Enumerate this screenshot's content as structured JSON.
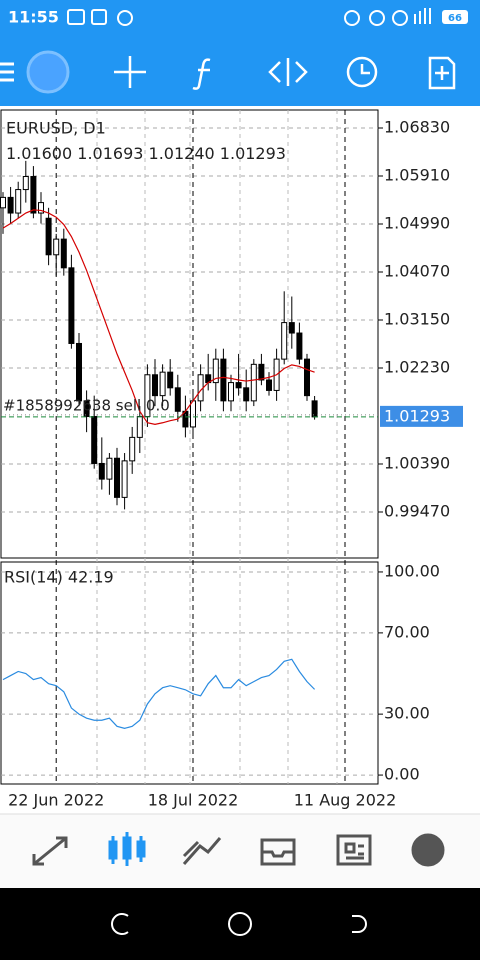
{
  "status_bar": {
    "time": "11:55",
    "battery": "66"
  },
  "chart_data": [
    {
      "type": "candlestick",
      "symbol": "EURUSD, D1",
      "ohlc_label": [
        "1.01600",
        "1.01693",
        "1.01240",
        "1.01293"
      ],
      "order_label": "#1858992638 sell 0.0",
      "categories": [
        null,
        null,
        null,
        null,
        null,
        null,
        null,
        "22 Jun 2022",
        null,
        null,
        null,
        null,
        null,
        null,
        null,
        null,
        null,
        null,
        null,
        null,
        null,
        null,
        null,
        null,
        null,
        "18 Jul 2022",
        null,
        null,
        null,
        null,
        null,
        null,
        null,
        null,
        null,
        null,
        null,
        null,
        null,
        null,
        null,
        null,
        null,
        null,
        null,
        "11 Aug 2022"
      ],
      "open": [
        1.053,
        1.055,
        1.052,
        1.0565,
        1.059,
        1.052,
        1.051,
        1.044,
        1.047,
        1.0415,
        1.027,
        1.016,
        1.013,
        1.004,
        1.001,
        1.005,
        0.9975,
        1.0045,
        1.009,
        1.013,
        1.021,
        1.017,
        1.0215,
        1.0185,
        1.014,
        1.011,
        1.016,
        1.021,
        1.0195,
        1.024,
        1.016,
        1.0195,
        1.0185,
        1.016,
        1.023,
        1.02,
        1.018,
        1.024,
        1.031,
        1.029,
        1.024,
        1.016,
        null,
        null,
        null,
        null
      ],
      "high": [
        1.056,
        1.057,
        1.058,
        1.062,
        1.061,
        1.056,
        1.053,
        1.048,
        1.049,
        1.044,
        1.029,
        1.018,
        1.017,
        1.009,
        1.006,
        1.007,
        1.006,
        1.011,
        1.015,
        1.023,
        1.024,
        1.023,
        1.024,
        1.021,
        1.017,
        1.018,
        1.023,
        1.025,
        1.026,
        1.026,
        1.021,
        1.025,
        1.022,
        1.024,
        1.025,
        1.0215,
        1.026,
        1.037,
        1.036,
        1.031,
        1.025,
        1.01693,
        null,
        null,
        null,
        null
      ],
      "low": [
        1.048,
        1.05,
        1.051,
        1.054,
        1.051,
        1.05,
        1.042,
        1.04,
        1.04,
        1.026,
        1.015,
        1.01,
        1.003,
        0.999,
        0.998,
        0.996,
        0.9952,
        1.002,
        1.006,
        1.011,
        1.015,
        1.015,
        1.017,
        1.012,
        1.009,
        1.009,
        1.014,
        1.018,
        1.016,
        1.014,
        1.014,
        1.017,
        1.014,
        1.015,
        1.019,
        1.017,
        1.016,
        1.023,
        1.026,
        1.023,
        1.016,
        1.0124,
        null,
        null,
        null,
        null
      ],
      "close": [
        1.055,
        1.052,
        1.0565,
        1.059,
        1.052,
        1.054,
        1.044,
        1.047,
        1.0415,
        1.027,
        1.016,
        1.013,
        1.004,
        1.001,
        1.005,
        0.9975,
        1.0045,
        1.009,
        1.013,
        1.021,
        1.017,
        1.0215,
        1.0185,
        1.014,
        1.011,
        1.016,
        1.021,
        1.0195,
        1.024,
        1.016,
        1.0195,
        1.0185,
        1.016,
        1.023,
        1.02,
        1.018,
        1.024,
        1.031,
        1.029,
        1.024,
        1.017,
        1.01293,
        null,
        null,
        null,
        null
      ],
      "overlay": {
        "color": "#d40000",
        "values": [
          1.0491,
          1.05,
          1.051,
          1.052,
          1.0526,
          1.0525,
          1.052,
          1.0512,
          1.0498,
          1.0475,
          1.0445,
          1.041,
          1.037,
          1.033,
          1.029,
          1.025,
          1.0215,
          1.018,
          1.014,
          1.0118,
          1.0115,
          1.0118,
          1.0122,
          1.0125,
          1.014,
          1.016,
          1.018,
          1.0195,
          1.0203,
          1.0205,
          1.0203,
          1.02,
          1.0198,
          1.02,
          1.0202,
          1.0205,
          1.021,
          1.0222,
          1.0229,
          1.0226,
          1.022,
          1.0215,
          null,
          null,
          null,
          null
        ]
      },
      "last_price": 1.01293,
      "ylim": [
        0.98588,
        1.07175
      ],
      "yticks": [
        {
          "value": 1.0683,
          "label": "1.06830"
        },
        {
          "value": 1.0591,
          "label": "1.05910"
        },
        {
          "value": 1.0499,
          "label": "1.04990"
        },
        {
          "value": 1.0407,
          "label": "1.04070"
        },
        {
          "value": 1.0315,
          "label": "1.03150"
        },
        {
          "value": 1.0223,
          "label": "1.02230"
        },
        {
          "value": 1.0039,
          "label": "1.00390"
        },
        {
          "value": 0.9947,
          "label": "0.99470"
        }
      ],
      "grid": true
    },
    {
      "type": "line",
      "title": "RSI(14) 42.19",
      "color": "#2a8be0",
      "values": [
        47,
        49,
        51,
        50,
        47,
        48,
        45,
        44,
        41,
        33,
        30,
        28,
        27,
        27,
        28,
        24,
        23,
        24,
        27,
        35,
        40,
        43,
        44,
        43,
        42,
        40,
        39,
        45,
        49,
        43,
        43,
        47,
        44,
        46,
        48,
        49,
        52,
        56,
        57,
        51,
        46,
        42.19,
        null,
        null,
        null,
        null
      ],
      "ylim": [
        -4.4,
        104.9
      ],
      "yticks": [
        {
          "value": 100,
          "label": "100.00"
        },
        {
          "value": 70,
          "label": "70.00"
        },
        {
          "value": 30,
          "label": "30.00"
        },
        {
          "value": 0,
          "label": "0.00"
        }
      ],
      "grid": true
    }
  ]
}
